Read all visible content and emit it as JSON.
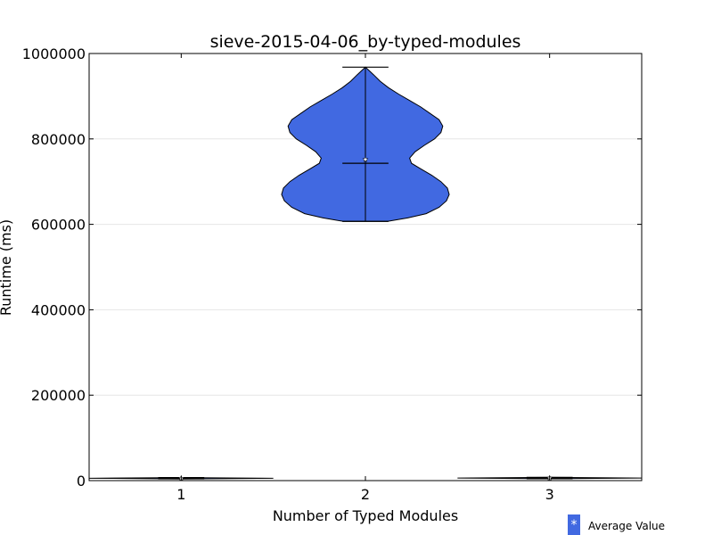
{
  "chart_data": {
    "type": "violin",
    "title": "sieve-2015-04-06_by-typed-modules",
    "xlabel": "Number of Typed Modules",
    "ylabel": "Runtime (ms)",
    "ylim": [
      0,
      1000000
    ],
    "yticks": [
      0,
      200000,
      400000,
      600000,
      800000,
      1000000
    ],
    "yticklabels": [
      "0",
      "200000",
      "400000",
      "600000",
      "800000",
      "1000000"
    ],
    "xlim": [
      0.5,
      3.5
    ],
    "categories": [
      "1",
      "2",
      "3"
    ],
    "violins": [
      {
        "category": "1",
        "min": 4000,
        "max": 7000,
        "median": 5500,
        "mean": 5500,
        "profile": [
          [
            4000,
            0.0
          ],
          [
            5500,
            0.5
          ],
          [
            7000,
            0.0
          ]
        ]
      },
      {
        "category": "2",
        "min": 607000,
        "max": 968000,
        "median": 743000,
        "mean": 752000,
        "profile": [
          [
            607000,
            0.12
          ],
          [
            615000,
            0.23
          ],
          [
            625000,
            0.33
          ],
          [
            640000,
            0.4
          ],
          [
            655000,
            0.44
          ],
          [
            670000,
            0.455
          ],
          [
            685000,
            0.445
          ],
          [
            700000,
            0.41
          ],
          [
            715000,
            0.36
          ],
          [
            730000,
            0.3
          ],
          [
            743000,
            0.25
          ],
          [
            755000,
            0.24
          ],
          [
            770000,
            0.27
          ],
          [
            785000,
            0.32
          ],
          [
            800000,
            0.375
          ],
          [
            815000,
            0.41
          ],
          [
            830000,
            0.42
          ],
          [
            845000,
            0.4
          ],
          [
            860000,
            0.35
          ],
          [
            875000,
            0.3
          ],
          [
            890000,
            0.24
          ],
          [
            905000,
            0.18
          ],
          [
            920000,
            0.125
          ],
          [
            935000,
            0.08
          ],
          [
            950000,
            0.045
          ],
          [
            960000,
            0.02
          ],
          [
            968000,
            0.0
          ]
        ]
      },
      {
        "category": "3",
        "min": 4500,
        "max": 7500,
        "median": 6000,
        "mean": 6000,
        "profile": [
          [
            4500,
            0.0
          ],
          [
            6000,
            0.5
          ],
          [
            7500,
            0.0
          ]
        ]
      }
    ],
    "fill_color": "#4169e1",
    "grid": "horizontal",
    "legend": {
      "placement": "bottom-right",
      "label": "Average Value",
      "marker": "*"
    }
  }
}
